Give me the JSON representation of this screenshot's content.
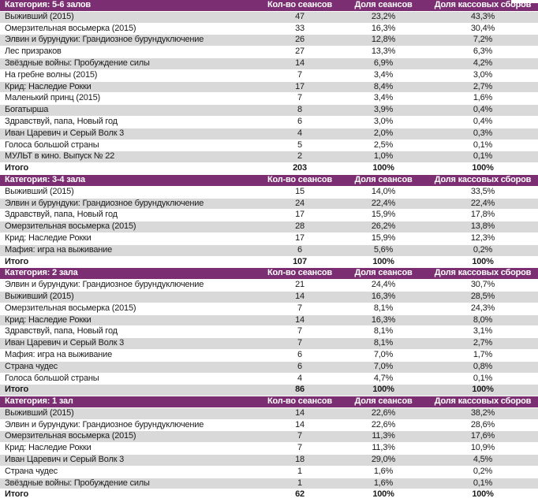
{
  "report": {
    "colors": {
      "header_bg": "#7B2E72",
      "header_text": "#FFFFFF",
      "stripe": "#D9D9D9"
    },
    "columns": [
      "Кол-во сеансов",
      "Доля сеансов",
      "Доля кассовых сборов"
    ],
    "total_label": "Итого",
    "tables": [
      {
        "category": "Категория: 5-6 залов",
        "rows": [
          [
            "Выживший (2015)",
            "47",
            "23,2%",
            "43,3%"
          ],
          [
            "Омерзительная восьмерка (2015)",
            "33",
            "16,3%",
            "30,4%"
          ],
          [
            "Элвин и бурундуки: Грандиозное бурундуключение",
            "26",
            "12,8%",
            "7,2%"
          ],
          [
            "Лес призраков",
            "27",
            "13,3%",
            "6,3%"
          ],
          [
            "Звёздные войны: Пробуждение силы",
            "14",
            "6,9%",
            "4,2%"
          ],
          [
            "На гребне волны (2015)",
            "7",
            "3,4%",
            "3,0%"
          ],
          [
            "Крид: Наследие Рокки",
            "17",
            "8,4%",
            "2,7%"
          ],
          [
            "Маленький принц (2015)",
            "7",
            "3,4%",
            "1,6%"
          ],
          [
            "Богатырша",
            "8",
            "3,9%",
            "0,4%"
          ],
          [
            "Здравствуй, папа, Новый год",
            "6",
            "3,0%",
            "0,4%"
          ],
          [
            "Иван Царевич и Серый Волк 3",
            "4",
            "2,0%",
            "0,3%"
          ],
          [
            "Голоса большой страны",
            "5",
            "2,5%",
            "0,1%"
          ],
          [
            "МУЛЬТ в кино. Выпуск № 22",
            "2",
            "1,0%",
            "0,1%"
          ]
        ],
        "total": [
          "203",
          "100%",
          "100%"
        ]
      },
      {
        "category": "Категория: 3-4 зала",
        "rows": [
          [
            "Выживший (2015)",
            "15",
            "14,0%",
            "33,5%"
          ],
          [
            "Элвин и бурундуки: Грандиозное бурундуключение",
            "24",
            "22,4%",
            "22,4%"
          ],
          [
            "Здравствуй, папа, Новый год",
            "17",
            "15,9%",
            "17,8%"
          ],
          [
            "Омерзительная восьмерка (2015)",
            "28",
            "26,2%",
            "13,8%"
          ],
          [
            "Крид: Наследие Рокки",
            "17",
            "15,9%",
            "12,3%"
          ],
          [
            "Мафия: игра на выживание",
            "6",
            "5,6%",
            "0,2%"
          ]
        ],
        "total": [
          "107",
          "100%",
          "100%"
        ]
      },
      {
        "category": "Категория: 2 зала",
        "rows": [
          [
            "Элвин и бурундуки: Грандиозное бурундуключение",
            "21",
            "24,4%",
            "30,7%"
          ],
          [
            "Выживший (2015)",
            "14",
            "16,3%",
            "28,5%"
          ],
          [
            "Омерзительная восьмерка (2015)",
            "7",
            "8,1%",
            "24,3%"
          ],
          [
            "Крид: Наследие Рокки",
            "14",
            "16,3%",
            "8,0%"
          ],
          [
            "Здравствуй, папа, Новый год",
            "7",
            "8,1%",
            "3,1%"
          ],
          [
            "Иван Царевич и Серый Волк 3",
            "7",
            "8,1%",
            "2,7%"
          ],
          [
            "Мафия: игра на выживание",
            "6",
            "7,0%",
            "1,7%"
          ],
          [
            "Страна чудес",
            "6",
            "7,0%",
            "0,8%"
          ],
          [
            "Голоса большой страны",
            "4",
            "4,7%",
            "0,1%"
          ]
        ],
        "total": [
          "86",
          "100%",
          "100%"
        ]
      },
      {
        "category": "Категория: 1 зал",
        "rows": [
          [
            "Выживший (2015)",
            "14",
            "22,6%",
            "38,2%"
          ],
          [
            "Элвин и бурундуки: Грандиозное бурундуключение",
            "14",
            "22,6%",
            "28,6%"
          ],
          [
            "Омерзительная восьмерка (2015)",
            "7",
            "11,3%",
            "17,6%"
          ],
          [
            "Крид: Наследие Рокки",
            "7",
            "11,3%",
            "10,9%"
          ],
          [
            "Иван Царевич и Серый Волк 3",
            "18",
            "29,0%",
            "4,5%"
          ],
          [
            "Страна чудес",
            "1",
            "1,6%",
            "0,2%"
          ],
          [
            "Звёздные войны: Пробуждение силы",
            "1",
            "1,6%",
            "0,1%"
          ]
        ],
        "total": [
          "62",
          "100%",
          "100%"
        ]
      }
    ]
  }
}
